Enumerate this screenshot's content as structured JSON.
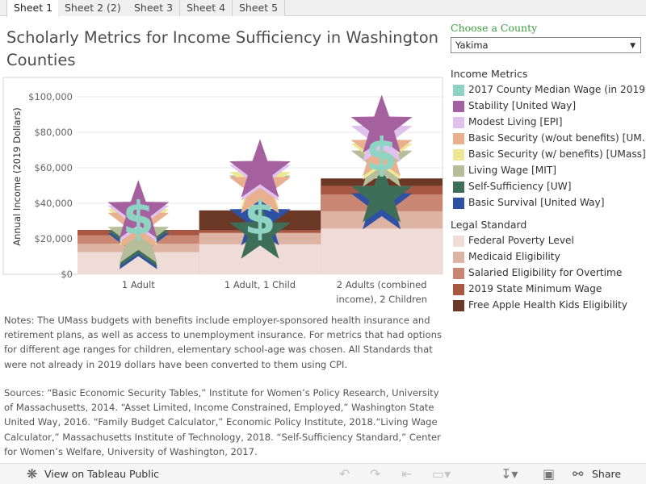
{
  "tabs": [
    "Sheet 1",
    "Sheet 2 (2)",
    "Sheet 3",
    "Sheet 4",
    "Sheet 5"
  ],
  "title": "Scholarly Metrics for Income Sufficiency in Washington Counties",
  "notes": "Notes: The UMass budgets with benefits include employer-sponsored health insurance and retirement plans, as well as access to unemployment insurance. For metrics that had options for different age ranges for children, elementary school-age was chosen. All Standards that were not already in 2019 dollars have been converted to them using CPI.",
  "sources": "Sources: “Basic Economic Security Tables,” Institute for Women’s Policy Research, University of Massachusetts, 2014. “Asset Limited, Income Constrained, Employed,” Washington State United Way, 2016. “Family Budget Calculator,” Economic Policy Institute, 2018.“Living Wage Calculator,” Massachusetts Institute of Technology, 2018. “Self-Sufficiency Standard,” Center for Women’s Welfare, University of Washington, 2017.",
  "county_filter": {
    "label": "Choose a County",
    "selected": "Yakima"
  },
  "legend_income": {
    "title": "Income Metrics",
    "items": [
      {
        "label": "2017 County Median Wage (in 2019 ...",
        "color": "#8fd3c3"
      },
      {
        "label": "Stability [United Way]",
        "color": "#a5619f"
      },
      {
        "label": "Modest Living [EPI]",
        "color": "#e0c2ee"
      },
      {
        "label": "Basic Security (w/out benefits) [UM...",
        "color": "#e8b08e"
      },
      {
        "label": "Basic Security (w/ benefits) [UMass]",
        "color": "#ede895"
      },
      {
        "label": "Living Wage [MIT]",
        "color": "#b6bd9a"
      },
      {
        "label": "Self-Sufficiency [UW]",
        "color": "#3f6e58"
      },
      {
        "label": "Basic Survival [United Way]",
        "color": "#2f51a3"
      }
    ]
  },
  "legend_legal": {
    "title": "Legal Standard",
    "items": [
      {
        "label": "Federal Poverty Level",
        "color": "#f0dcd6"
      },
      {
        "label": "Medicaid Eligibility",
        "color": "#ddb3a4"
      },
      {
        "label": "Salaried Eligibility for Overtime",
        "color": "#c98673"
      },
      {
        "label": "2019 State Minimum Wage",
        "color": "#a85742"
      },
      {
        "label": "Free Apple Health Kids Eligibility",
        "color": "#6b3826"
      }
    ]
  },
  "toolbar": {
    "view_label": "View on Tableau Public",
    "share_label": "Share"
  },
  "chart_data": {
    "type": "area",
    "ylabel": "Annual Income (2019 Dollars)",
    "ylim": [
      0,
      110000
    ],
    "yticks": [
      0,
      20000,
      40000,
      60000,
      80000,
      100000
    ],
    "ytick_labels": [
      "$0",
      "$20,000",
      "$40,000",
      "$60,000",
      "$80,000",
      "$100,000"
    ],
    "categories": [
      "1 Adult",
      "1 Adult, 1 Child",
      "2 Adults (combined income), 2 Children"
    ],
    "category_labels": [
      [
        "1 Adult"
      ],
      [
        "1 Adult, 1 Child"
      ],
      [
        "2 Adults (combined",
        "income), 2 Children"
      ]
    ],
    "legal_series": [
      {
        "name": "Federal Poverty Level",
        "color": "#f0dcd6",
        "values": [
          12490,
          16910,
          25750
        ]
      },
      {
        "name": "Medicaid Eligibility",
        "color": "#ddb3a4",
        "values": [
          17240,
          23340,
          35530
        ]
      },
      {
        "name": "Salaried Eligibility for Overtime",
        "color": "#c98673",
        "values": [
          22000,
          22000,
          45000
        ]
      },
      {
        "name": "2019 State Minimum Wage",
        "color": "#a85742",
        "values": [
          24960,
          24960,
          49920
        ]
      },
      {
        "name": "Free Apple Health Kids Eligibility",
        "color": "#6b3826",
        "values": [
          25000,
          36000,
          54000
        ]
      }
    ],
    "income_series": [
      {
        "name": "Basic Survival [United Way]",
        "shape": "star",
        "color": "#2f51a3",
        "values": [
          17500,
          31000,
          40000
        ]
      },
      {
        "name": "Self-Sufficiency [UW]",
        "shape": "star",
        "color": "#3f6e58",
        "values": [
          19000,
          23500,
          44000
        ]
      },
      {
        "name": "Living Wage [MIT]",
        "shape": "star",
        "color": "#b6bd9a",
        "values": [
          21000,
          50000,
          64000
        ]
      },
      {
        "name": "Basic Security (w/ benefits) [UMass]",
        "shape": "star",
        "color": "#ede895",
        "values": [
          31000,
          52000,
          68000
        ]
      },
      {
        "name": "Basic Security (w/out benefits) [UMass]",
        "shape": "star",
        "color": "#e8b08e",
        "values": [
          29000,
          49000,
          70000
        ]
      },
      {
        "name": "Modest Living [EPI]",
        "shape": "star",
        "color": "#e0c2ee",
        "values": [
          33000,
          56000,
          78000
        ]
      },
      {
        "name": "Stability [United Way]",
        "shape": "star",
        "color": "#a5619f",
        "values": [
          35000,
          58000,
          83000
        ]
      },
      {
        "name": "2017 County Median Wage (in 2019 Dollars)",
        "shape": "dollar",
        "color": "#8fd3c3",
        "values": [
          32000,
          32000,
          68000
        ]
      }
    ]
  }
}
